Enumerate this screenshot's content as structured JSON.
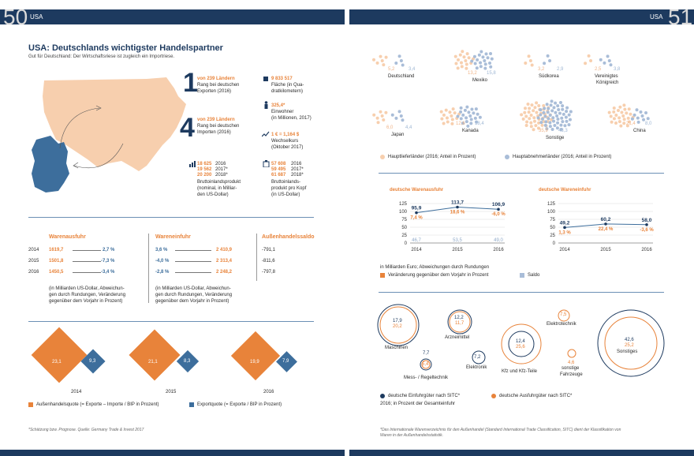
{
  "header": {
    "left_page": "50",
    "left_label": "USA",
    "right_label": "USA",
    "right_page": "51"
  },
  "title": "USA: Deutschlands wichtigster Handelspartner",
  "subtitle": "Gut für Deutschland: Der Wirtschaftsriese ist zugleich ein Importriese.",
  "ranks": {
    "export_num": "1",
    "export_of": "von 239 Ländern",
    "export_text1": "Rang bei deutschen",
    "export_text2": "Exporten (2016)",
    "import_num": "4",
    "import_of": "von 239 Ländern",
    "import_text1": "Rang bei deutschen",
    "import_text2": "Importen (2016)"
  },
  "facts": {
    "area_value": "9 833 517",
    "area_l1": "Fläche (in Qua-",
    "area_l2": "dratkilometern)",
    "pop_value": "325,4*",
    "pop_l1": "Einwohner",
    "pop_l2": "(in Millionen, 2017)",
    "fx_value": "1 € = 1,164 $",
    "fx_l1": "Wechselkurs",
    "fx_l2": "(Oktober 2017)",
    "gdp_rows": [
      {
        "v": "18 625",
        "y": "2016"
      },
      {
        "v": "19 562",
        "y": "2017*"
      },
      {
        "v": "20 200",
        "y": "2018*"
      }
    ],
    "gdp_l1": "Bruttoinlandsprodukt",
    "gdp_l2": "(nominal, in Milliar-",
    "gdp_l3": "den US-Dollar)",
    "gdppc_rows": [
      {
        "v": "57 608",
        "y": "2016"
      },
      {
        "v": "59 495",
        "y": "2017*"
      },
      {
        "v": "61 687",
        "y": "2018*"
      }
    ],
    "gdppc_l1": "Bruttoinlands-",
    "gdppc_l2": "produkt pro Kopf",
    "gdppc_l3": "(in US-Dollar)"
  },
  "trade_table": {
    "h_exp": "Warenausfuhr",
    "h_imp": "Wareneinfuhr",
    "h_bal": "Außenhandelssaldo",
    "rows": [
      {
        "year": "2014",
        "exp": "1619,7",
        "exp_chg": "2,7 %",
        "imp_chg": "3,6 %",
        "imp": "2 410,9",
        "bal": "-791,1"
      },
      {
        "year": "2015",
        "exp": "1501,8",
        "exp_chg": "-7,3 %",
        "imp_chg": "-4,0 %",
        "imp": "2 313,4",
        "bal": "-811,6"
      },
      {
        "year": "2016",
        "exp": "1450,5",
        "exp_chg": "-3,4 %",
        "imp_chg": "-2,8 %",
        "imp": "2 248,2",
        "bal": "-797,8"
      }
    ],
    "note_exp_1": "(in Milliarden US-Dollar, Abweichun-",
    "note_exp_2": "gen durch Rundungen, Veränderung",
    "note_exp_3": "gegenüber dem Vorjahr in Prozent)",
    "note_imp_1": "(in Milliarden US-Dollar, Abweichun-",
    "note_imp_2": "gen durch Rundungen, Veränderung",
    "note_imp_3": "gegenüber dem Vorjahr in Prozent)"
  },
  "quotas": {
    "items": [
      {
        "year": "2014",
        "aq": "23,1",
        "eq": "9,3"
      },
      {
        "year": "2015",
        "aq": "21,1",
        "eq": "8,3"
      },
      {
        "year": "2016",
        "aq": "19,9",
        "eq": "7,9"
      }
    ],
    "legend_aq": "Außenhandelsquote (= Exporte – Importe / BIP in Prozent)",
    "legend_eq": "Exportquote (= Exporte / BIP in Prozent)",
    "colors": {
      "aq": "#e8833a",
      "eq": "#3d6e9c"
    }
  },
  "footnote_left": "*Schätzung bzw. Prognose. Quelle: Germany Trade & Invest 2017",
  "partners": {
    "items": [
      {
        "name": "Deutschland",
        "sup": "5,2",
        "buy": "3,4"
      },
      {
        "name": "Mexiko",
        "sup": "13,2",
        "buy": "15,8"
      },
      {
        "name": "Südkorea",
        "sup": "3,2",
        "buy": "2,9"
      },
      {
        "name": "Vereinigtes",
        "name2": "Königreich",
        "sup": "2,5",
        "buy": "3,8"
      },
      {
        "name": "Japan",
        "sup": "6,0",
        "buy": "4,4"
      },
      {
        "name": "Kanada",
        "sup": "12,6",
        "buy": "18,4"
      },
      {
        "name": "Sonstige",
        "sup": "35,9",
        "buy": "43,3"
      },
      {
        "name": "China",
        "sup": "21,4",
        "buy": "8,0"
      }
    ],
    "legend_sup": "Hauptlieferländer (2016; Anteil in Prozent)",
    "legend_buy": "Hauptabnehmerländer (2016; Anteil in Prozent)"
  },
  "chart_data": [
    {
      "type": "line",
      "title": "deutsche Warenausfuhr",
      "categories": [
        "2014",
        "2015",
        "2016"
      ],
      "series": [
        {
          "values": [
            95.9,
            113.7,
            106.9
          ],
          "labels": [
            "95,9",
            "113,7",
            "106,9"
          ]
        },
        {
          "values": [
            46.7,
            53.5,
            49.0
          ],
          "labels": [
            "46,7",
            "53,5",
            "49,0"
          ]
        }
      ],
      "changes": [
        "7,4 %",
        "18,6 %",
        "-6,0 %"
      ],
      "yticks": [
        "125",
        "100",
        "75",
        "50",
        "25",
        "0"
      ],
      "ylim": [
        0,
        125
      ]
    },
    {
      "type": "line",
      "title": "deutsche Wareneinfuhr",
      "categories": [
        "2014",
        "2015",
        "2016"
      ],
      "series": [
        {
          "values": [
            49.2,
            60.2,
            58.0
          ],
          "labels": [
            "49,2",
            "60,2",
            "58,0"
          ]
        }
      ],
      "changes": [
        "1,3 %",
        "22,4 %",
        "-3,6 %"
      ],
      "yticks": [
        "125",
        "100",
        "75",
        "50",
        "25",
        "0"
      ],
      "ylim": [
        0,
        125
      ]
    }
  ],
  "charts_note": "in Milliarden Euro; Abweichungen durch Rundungen",
  "charts_legend_change": "Veränderung gegenüber dem Vorjahr in Prozent",
  "charts_legend_saldo": "Saldo",
  "goods": {
    "items": [
      {
        "name": "Maschinen",
        "imp": "17,9",
        "exp": "20,2"
      },
      {
        "name": "Arzneimittel",
        "imp": "12,2",
        "exp": "11,7"
      },
      {
        "name": "Elektrotechnik",
        "imp": "",
        "exp": "7,5"
      },
      {
        "name": "Mess- / Regeltechnik",
        "imp": "7,7",
        "exp": "5,4"
      },
      {
        "name": "Elektronik",
        "imp": "7,2",
        "exp": ""
      },
      {
        "name": "Kfz und Kfz-Teile",
        "imp": "12,4",
        "exp": "25,6"
      },
      {
        "name": "sonstige",
        "name2": "Fahrzeuge",
        "imp": "",
        "exp": "4,6"
      },
      {
        "name": "Sonstiges",
        "imp": "42,6",
        "exp": "25,2"
      }
    ],
    "legend_imp": "deutsche Einfuhrgüter nach SITC*",
    "legend_imp2": "2016; in Prozent der Gesamteinfuhr",
    "legend_exp": "deutsche Ausfuhrgüter nach SITC*"
  },
  "footnote_right_1": "*Das Internationale Warenverzeichnis für den Außenhandel (Standard International Trade Classification, SITC) dient der Klassifikation von",
  "footnote_right_2": "Waren in der Außenhandelsstatistik."
}
